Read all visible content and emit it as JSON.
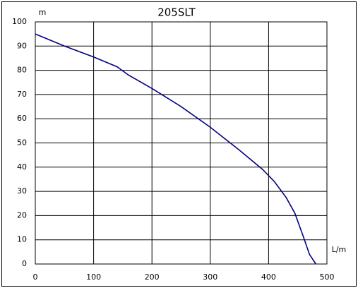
{
  "chart_data": {
    "type": "line",
    "title": "205SLT",
    "y_label": "m",
    "x_label": "L/m",
    "x": [
      0,
      50,
      100,
      140,
      160,
      200,
      250,
      300,
      350,
      390,
      410,
      430,
      445,
      460,
      470,
      481
    ],
    "series": [
      {
        "name": "205SLT",
        "color": "#000080",
        "values": [
          95,
          90,
          85.5,
          81.5,
          78,
          72.5,
          65,
          56.5,
          47,
          39,
          34,
          27.5,
          21,
          11,
          4,
          0
        ]
      }
    ],
    "xlim": [
      0,
      500
    ],
    "xticks": [
      0,
      100,
      200,
      300,
      400,
      500
    ],
    "ylim": [
      0,
      100
    ],
    "yticks": [
      0,
      10,
      20,
      30,
      40,
      50,
      60,
      70,
      80,
      90,
      100
    ],
    "grid": true
  }
}
